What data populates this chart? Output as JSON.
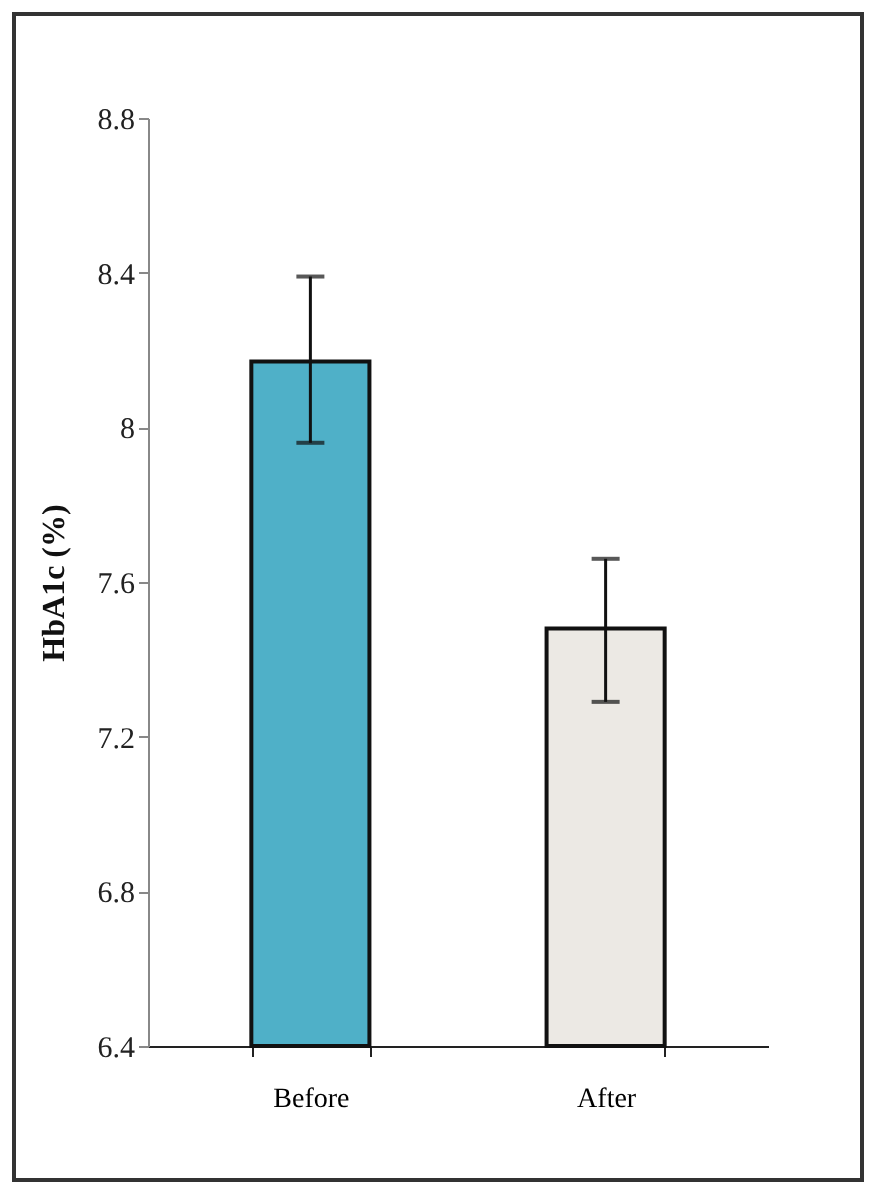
{
  "chart_data": {
    "type": "bar",
    "ylabel": "HbA1c (%)",
    "categories": [
      "Before",
      "After"
    ],
    "values": [
      8.17,
      7.48
    ],
    "colors": [
      "#4fb0c8",
      "#ece9e4"
    ],
    "errors": [
      [
        7.96,
        8.39
      ],
      [
        7.29,
        7.66
      ]
    ],
    "ylim": [
      6.4,
      8.8
    ],
    "yticks": [
      6.4,
      6.8,
      7.2,
      7.6,
      8,
      8.4,
      8.8
    ],
    "grid": false,
    "legend": false
  }
}
